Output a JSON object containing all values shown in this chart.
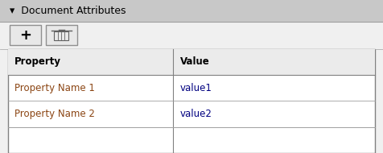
{
  "title": "Document Attributes",
  "title_arrow": "▾",
  "bg_color": "#d4d0c8",
  "panel_bg": "#f0f0f0",
  "table_bg": "#ffffff",
  "border_color": "#808080",
  "header_line_color": "#a0a0a0",
  "col_header": [
    "Property",
    "Value"
  ],
  "rows": [
    [
      "Property Name 1",
      "value1"
    ],
    [
      "Property Name 2",
      "value2"
    ]
  ],
  "property_col_color": "#8b4513",
  "value_col_color": "#000080",
  "header_text_color": "#000000",
  "col_split": 0.45,
  "title_fontsize": 9,
  "table_fontsize": 8.5,
  "figsize": [
    4.76,
    1.9
  ],
  "dpi": 100
}
